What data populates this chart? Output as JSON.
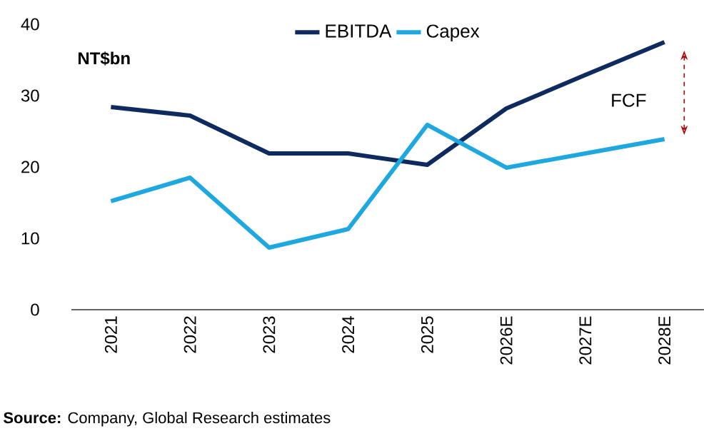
{
  "chart_data": {
    "type": "line",
    "ylabel": "NT$bn",
    "categories": [
      "2021",
      "2022",
      "2023",
      "2024",
      "2025",
      "2026E",
      "2027E",
      "2028E"
    ],
    "series": [
      {
        "name": "EBITDA",
        "color": "#0f2a5e",
        "values": [
          28.4,
          27.2,
          21.9,
          21.9,
          20.3,
          28.2,
          32.9,
          37.5
        ]
      },
      {
        "name": "Capex",
        "color": "#1fa8e0",
        "values": [
          15.2,
          18.5,
          8.7,
          11.3,
          25.9,
          19.9,
          21.9,
          23.9
        ]
      }
    ],
    "ylim": [
      0,
      40
    ],
    "yticks": [
      0,
      10,
      20,
      30,
      40
    ],
    "legend": "top",
    "grid": false,
    "marker": "none",
    "line_style": "solid",
    "annotations": [
      "FCF",
      "**Source:** Company, Global Research estimates"
    ]
  }
}
